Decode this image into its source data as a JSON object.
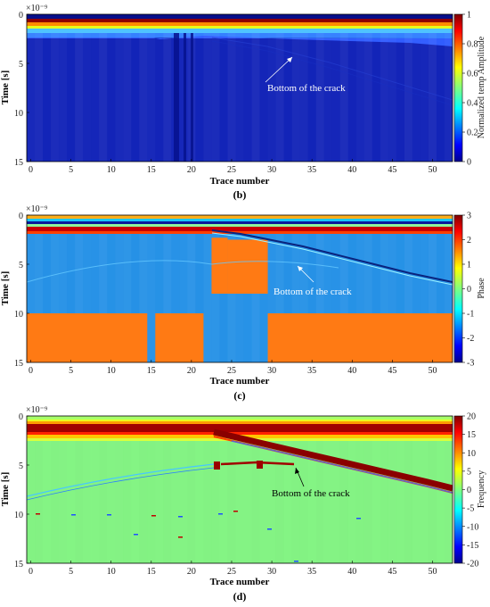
{
  "chart_data": [
    {
      "type": "heatmap",
      "caption": "(b)",
      "xlabel": "Trace number",
      "ylabel": "Time [s]",
      "exponent_label": "×10⁻⁹",
      "colorbar_label": "Normalized temp Amplitude",
      "colormap": "jet",
      "xlim": [
        -0.5,
        52.5
      ],
      "ylim": [
        0,
        15
      ],
      "xticks": [
        0,
        5,
        10,
        15,
        20,
        25,
        30,
        35,
        40,
        45,
        50
      ],
      "yticks": [
        0,
        5,
        10,
        15
      ],
      "clim": [
        0,
        1
      ],
      "cticks": [
        "1",
        "0.8",
        "0.6",
        "0.4",
        "0.2",
        "0"
      ],
      "annotation": {
        "text": "Bottom of the crack",
        "color": "#ffffff",
        "at": [
          33,
          4.8
        ]
      },
      "regions": [
        {
          "t0": 0,
          "t1": 0.4,
          "value": 0.05,
          "note": "dark top strip"
        },
        {
          "t0": 0.4,
          "t1": 1.4,
          "value": 0.95,
          "note": "direct wave"
        },
        {
          "t0": 1.4,
          "t1": 2.5,
          "value": 0.45,
          "note": "cyan/yellow band"
        },
        {
          "t0": 2.5,
          "t1": 15,
          "value": 0.05,
          "note": "background"
        }
      ]
    },
    {
      "type": "heatmap",
      "caption": "(c)",
      "xlabel": "Trace number",
      "ylabel": "Time [s]",
      "exponent_label": "×10⁻⁹",
      "colorbar_label": "Phase",
      "colormap": "jet",
      "xlim": [
        -0.5,
        52.5
      ],
      "ylim": [
        0,
        15
      ],
      "xticks": [
        0,
        5,
        10,
        15,
        20,
        25,
        30,
        35,
        40,
        45,
        50
      ],
      "yticks": [
        0,
        5,
        10,
        15
      ],
      "clim": [
        -3,
        3
      ],
      "cticks": [
        "3",
        "2",
        "1",
        "0",
        "-1",
        "-2",
        "-3"
      ],
      "annotation": {
        "text": "Bottom of the crack",
        "color": "#ffffff",
        "at": [
          33,
          5.0
        ]
      },
      "orange_blocks": [
        {
          "traces": [
            0,
            14
          ],
          "t": [
            10,
            15
          ]
        },
        {
          "traces": [
            16,
            21
          ],
          "t": [
            10,
            15
          ]
        },
        {
          "traces": [
            23,
            24
          ],
          "t": [
            2.3,
            8
          ]
        },
        {
          "traces": [
            25,
            29
          ],
          "t": [
            2.5,
            8
          ]
        },
        {
          "traces": [
            30,
            52
          ],
          "t": [
            10,
            15
          ]
        }
      ]
    },
    {
      "type": "heatmap",
      "caption": "(d)",
      "xlabel": "Trace number",
      "ylabel": "Time [s]",
      "exponent_label": "×10⁻⁹",
      "colorbar_label": "Frequency",
      "colormap": "jet",
      "xlim": [
        -0.5,
        52.5
      ],
      "ylim": [
        0,
        15
      ],
      "xticks": [
        0,
        5,
        10,
        15,
        20,
        25,
        30,
        35,
        40,
        45,
        50
      ],
      "yticks": [
        0,
        5,
        10,
        15
      ],
      "clim": [
        -20,
        20
      ],
      "cticks": [
        "20",
        "15",
        "10",
        "5",
        "0",
        "-5",
        "-10",
        "-15",
        "-20"
      ],
      "annotation": {
        "text": "Bottom of the crack",
        "color": "#000000",
        "at": [
          33,
          5.0
        ]
      },
      "diagonal_reflection": {
        "from": [
          24,
          1.8
        ],
        "to": [
          52,
          6.8
        ]
      }
    }
  ]
}
